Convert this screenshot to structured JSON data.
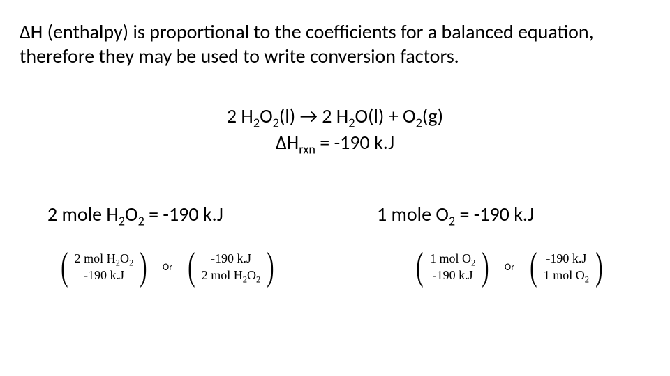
{
  "intro": "ΔH (enthalpy) is proportional to the coefficients for a balanced equation, therefore they may be used to write conversion factors.",
  "equation": {
    "line1_html": "2 H<span class='sub'>2</span>O<span class='sub'>2</span>(l) → 2 H<span class='sub'>2</span>O(l) + O<span class='sub'>2</span>(g)",
    "line2_html": "ΔH<span class='sub'>rxn</span> = -190 k.J"
  },
  "left": {
    "mole_html": "2 mole H<span class='sub'>2</span>O<span class='sub'>2</span> = -190 k.J",
    "frac1": {
      "num_html": "2 mol H<span class='fsub'>2</span>O<span class='fsub'>2</span>",
      "den_html": "-190 k.J"
    },
    "or": "Or",
    "frac2": {
      "num_html": "-190 k.J",
      "den_html": "2 mol H<span class='fsub'>2</span>O<span class='fsub'>2</span>"
    }
  },
  "right": {
    "mole_html": "1 mole O<span class='sub'>2</span> = -190 k.J",
    "frac1": {
      "num_html": "1 mol O<span class='fsub'>2</span>",
      "den_html": "-190 k.J"
    },
    "or": "Or",
    "frac2": {
      "num_html": "-190 k.J",
      "den_html": "1 mol O<span class='fsub'>2</span>"
    }
  },
  "colors": {
    "background": "#ffffff",
    "text": "#000000"
  },
  "fonts": {
    "body": "Calibri",
    "math": "Cambria Math"
  }
}
